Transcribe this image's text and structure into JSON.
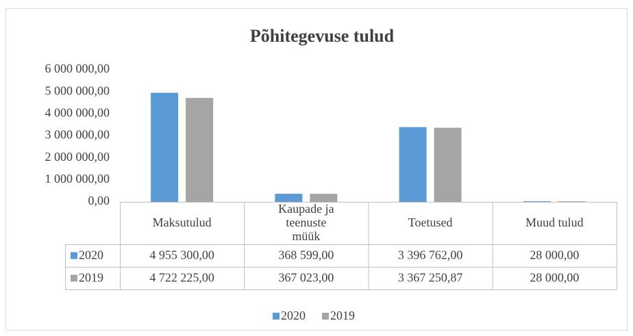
{
  "chart_data": {
    "type": "bar",
    "title": "Põhitegevuse tulud",
    "categories": [
      "Maksutulud",
      "Kaupade ja teenuste müük",
      "Toetused",
      "Muud tulud"
    ],
    "series": [
      {
        "name": "2020",
        "color": "#5b9bd5",
        "values": [
          4955300,
          368599,
          3396762,
          28000
        ],
        "value_labels": [
          "4 955 300,00",
          "368 599,00",
          "3 396 762,00",
          "28 000,00"
        ]
      },
      {
        "name": "2019",
        "color": "#a5a5a5",
        "values": [
          4722225,
          367023,
          3367250.87,
          28000
        ],
        "value_labels": [
          "4 722 225,00",
          "367 023,00",
          "3 367 250,87",
          "28 000,00"
        ]
      }
    ],
    "ylim": [
      0,
      6000000
    ],
    "yticks": [
      {
        "value": 0,
        "label": "0,00"
      },
      {
        "value": 1000000,
        "label": "1 000 000,00"
      },
      {
        "value": 2000000,
        "label": "2 000 000,00"
      },
      {
        "value": 3000000,
        "label": "3 000 000,00"
      },
      {
        "value": 4000000,
        "label": "4 000 000,00"
      },
      {
        "value": 5000000,
        "label": "5 000 000,00"
      },
      {
        "value": 6000000,
        "label": "6 000 000,00"
      }
    ],
    "legend": "bottom"
  }
}
